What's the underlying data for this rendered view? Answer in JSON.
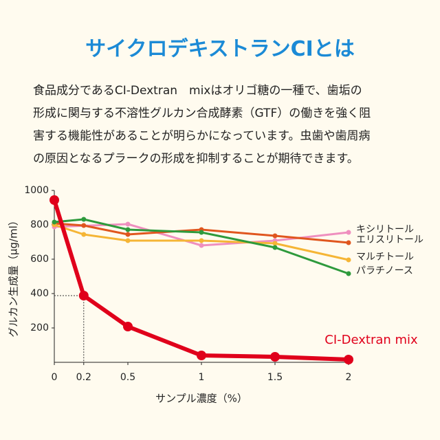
{
  "header": {
    "title": "サイクロデキストランCIとは"
  },
  "paragraph": [
    "食品成分であるCI-Dextran　mixはオリゴ糖の一種で、歯垢の",
    "形成に関与する不溶性グルカン合成酵素（GTF）の働きを強く阻",
    "害する機能性があることが明らかになっています。虫歯や歯周病",
    "の原因となるプラークの形成を抑制することが期待できます。"
  ],
  "chart_data": {
    "type": "line",
    "x_label": "サンプル濃度（%）",
    "y_label": "グルカン生成量（μg/ml）",
    "xlim": [
      0,
      2
    ],
    "ylim": [
      0,
      1000
    ],
    "xticks": [
      0,
      0.2,
      0.5,
      1,
      1.5,
      2
    ],
    "yticks": [
      200,
      400,
      600,
      800,
      1000
    ],
    "series": [
      {
        "name": "キシリトール",
        "color": "#ef8fbf",
        "x": [
          0,
          0.5,
          1,
          1.5,
          2
        ],
        "values": [
          788,
          804,
          680,
          708,
          756
        ]
      },
      {
        "name": "エリスリトール",
        "color": "#e0561e",
        "x": [
          0,
          0.2,
          0.5,
          1,
          1.5,
          2
        ],
        "values": [
          808,
          796,
          744,
          772,
          736,
          696
        ]
      },
      {
        "name": "マルチトール",
        "color": "#f5b535",
        "x": [
          0,
          0.2,
          0.5,
          1,
          1.5,
          2
        ],
        "values": [
          800,
          744,
          708,
          708,
          692,
          596
        ]
      },
      {
        "name": "パラチノース",
        "color": "#2e9a3c",
        "x": [
          0,
          0.2,
          0.5,
          1,
          1.5,
          2
        ],
        "values": [
          816,
          832,
          772,
          756,
          668,
          516
        ]
      },
      {
        "name": "CI-Dextran mix",
        "color": "#e0001b",
        "x": [
          0,
          0.2,
          0.5,
          1,
          1.5,
          2
        ],
        "values": [
          944,
          388,
          208,
          40,
          32,
          16
        ]
      }
    ]
  }
}
